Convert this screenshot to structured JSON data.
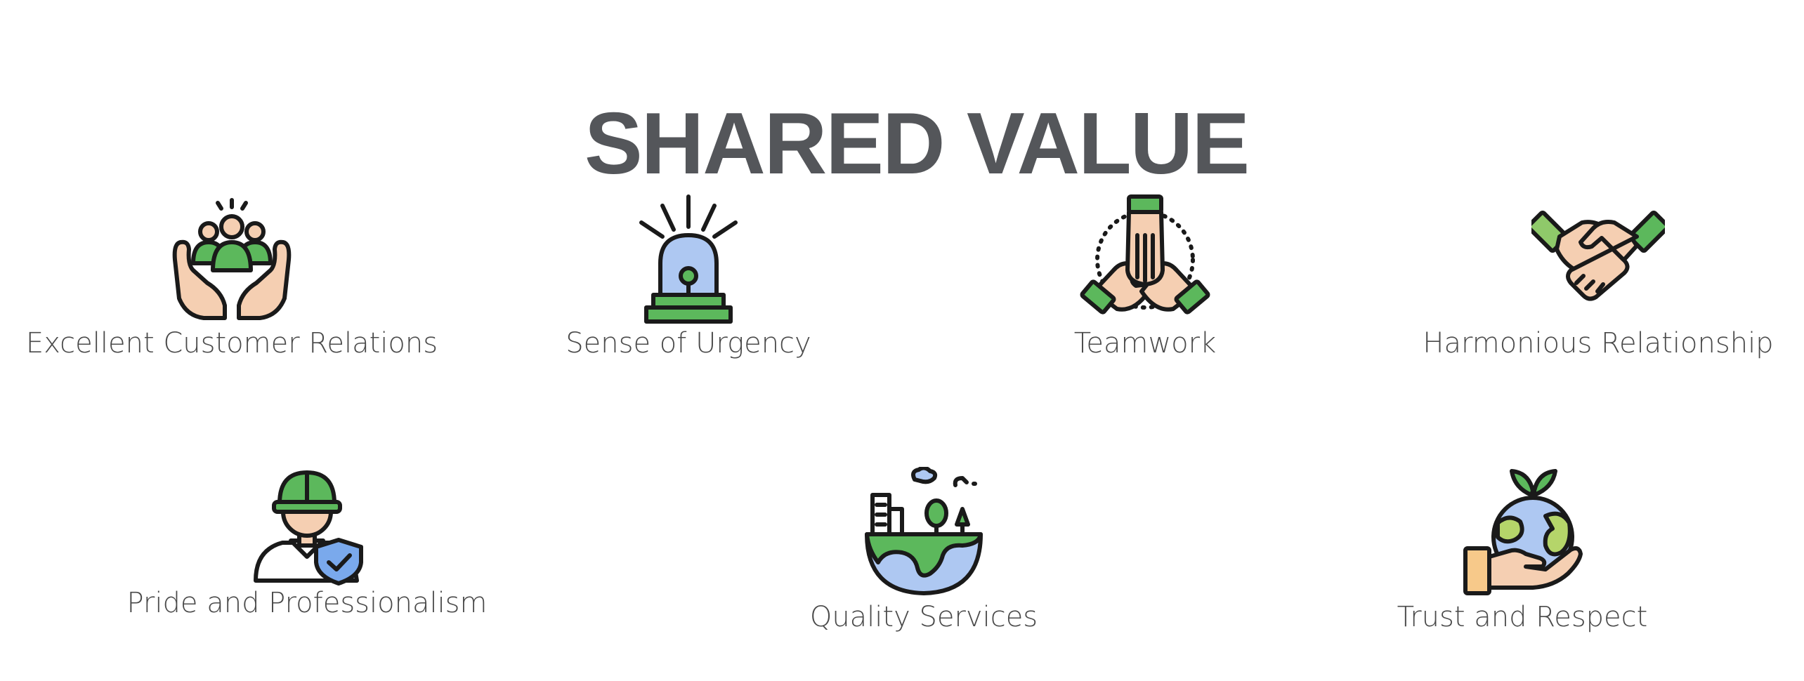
{
  "title": "SHARED VALUE",
  "colors": {
    "title": "#54565a",
    "label": "#4a4a4a",
    "green": "#5cb85c",
    "skin": "#f5cfb2",
    "blue": "#aec8f2",
    "outline": "#1a1a1a"
  },
  "values": [
    {
      "label": "Excellent Customer Relations",
      "icon": "hands-holding-people-icon"
    },
    {
      "label": "Sense of Urgency",
      "icon": "siren-alarm-icon"
    },
    {
      "label": "Teamwork",
      "icon": "stacked-hands-icon"
    },
    {
      "label": "Harmonious Relationship",
      "icon": "handshake-icon"
    },
    {
      "label": "Pride and Professionalism",
      "icon": "worker-with-shield-icon"
    },
    {
      "label": "Quality Services",
      "icon": "earth-with-city-icon"
    },
    {
      "label": "Trust and Respect",
      "icon": "hand-holding-globe-icon"
    }
  ]
}
